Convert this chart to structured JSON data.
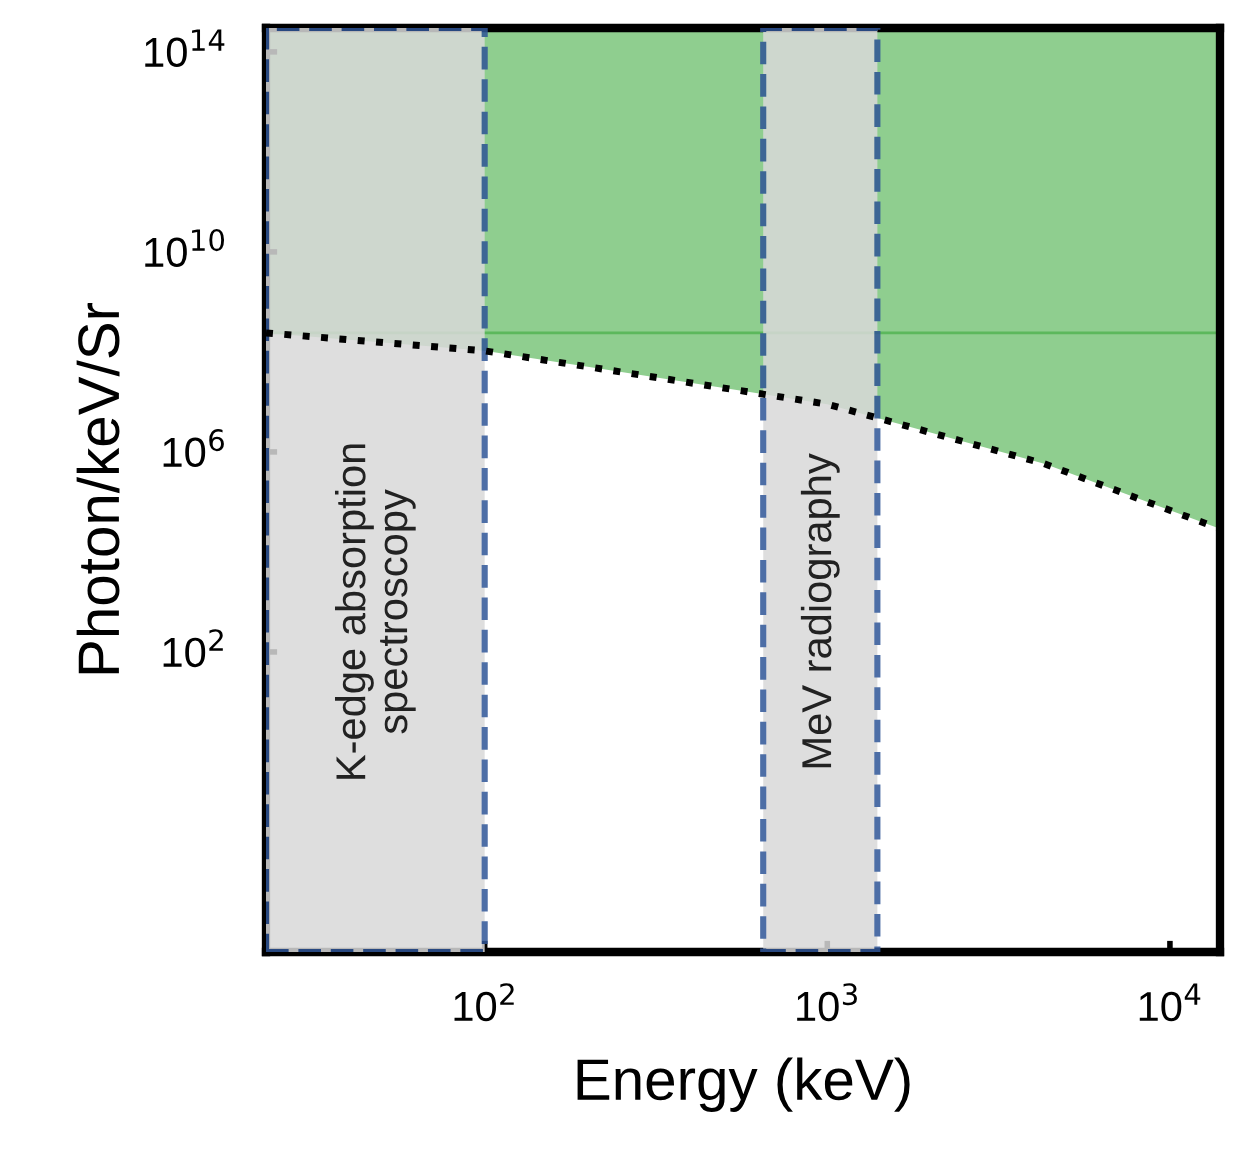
{
  "chart_data": {
    "type": "line",
    "xlabel": "Energy (keV)",
    "ylabel": "Photon/keV/Sr",
    "log": "xy",
    "grid": false,
    "legend": false,
    "x": [
      23,
      100,
      218,
      1000,
      4300,
      14000
    ],
    "series": [
      {
        "color": "#000000",
        "line_style": "dotted",
        "values": [
          240000000.0,
          105000000.0,
          46000000.0,
          9000000.0,
          580000.0,
          29000.0
        ]
      }
    ],
    "ref_lines": [
      {
        "axis": "y",
        "value": 240000000.0,
        "color": "#5cb85c"
      }
    ],
    "bands": [
      {
        "axis": "x",
        "from": 23,
        "to": 100,
        "label": "K-edge absorption\nspectroscopy",
        "color": "#d9d9d9"
      },
      {
        "axis": "x",
        "from": 650,
        "to": 1400,
        "label": "MeV radiography",
        "color": "#d9d9d9"
      }
    ],
    "xlim": [
      23,
      14000
    ],
    "ylim": [
      0.0001,
      300000000000000.0
    ],
    "xticks": [
      {
        "value": 100,
        "label": "10$^{2}$"
      },
      {
        "value": 1000,
        "label": "10$^{3}$"
      },
      {
        "value": 10000,
        "label": "10$^{4}$"
      }
    ],
    "yticks": [
      {
        "value": 100000000000000.0,
        "label": "10$^{14}$"
      },
      {
        "value": 10000000000.0,
        "label": "10$^{10}$"
      },
      {
        "value": 1000000.0,
        "label": "10$^{6}$"
      },
      {
        "value": 100.0,
        "label": "10$^{2}$"
      }
    ]
  }
}
